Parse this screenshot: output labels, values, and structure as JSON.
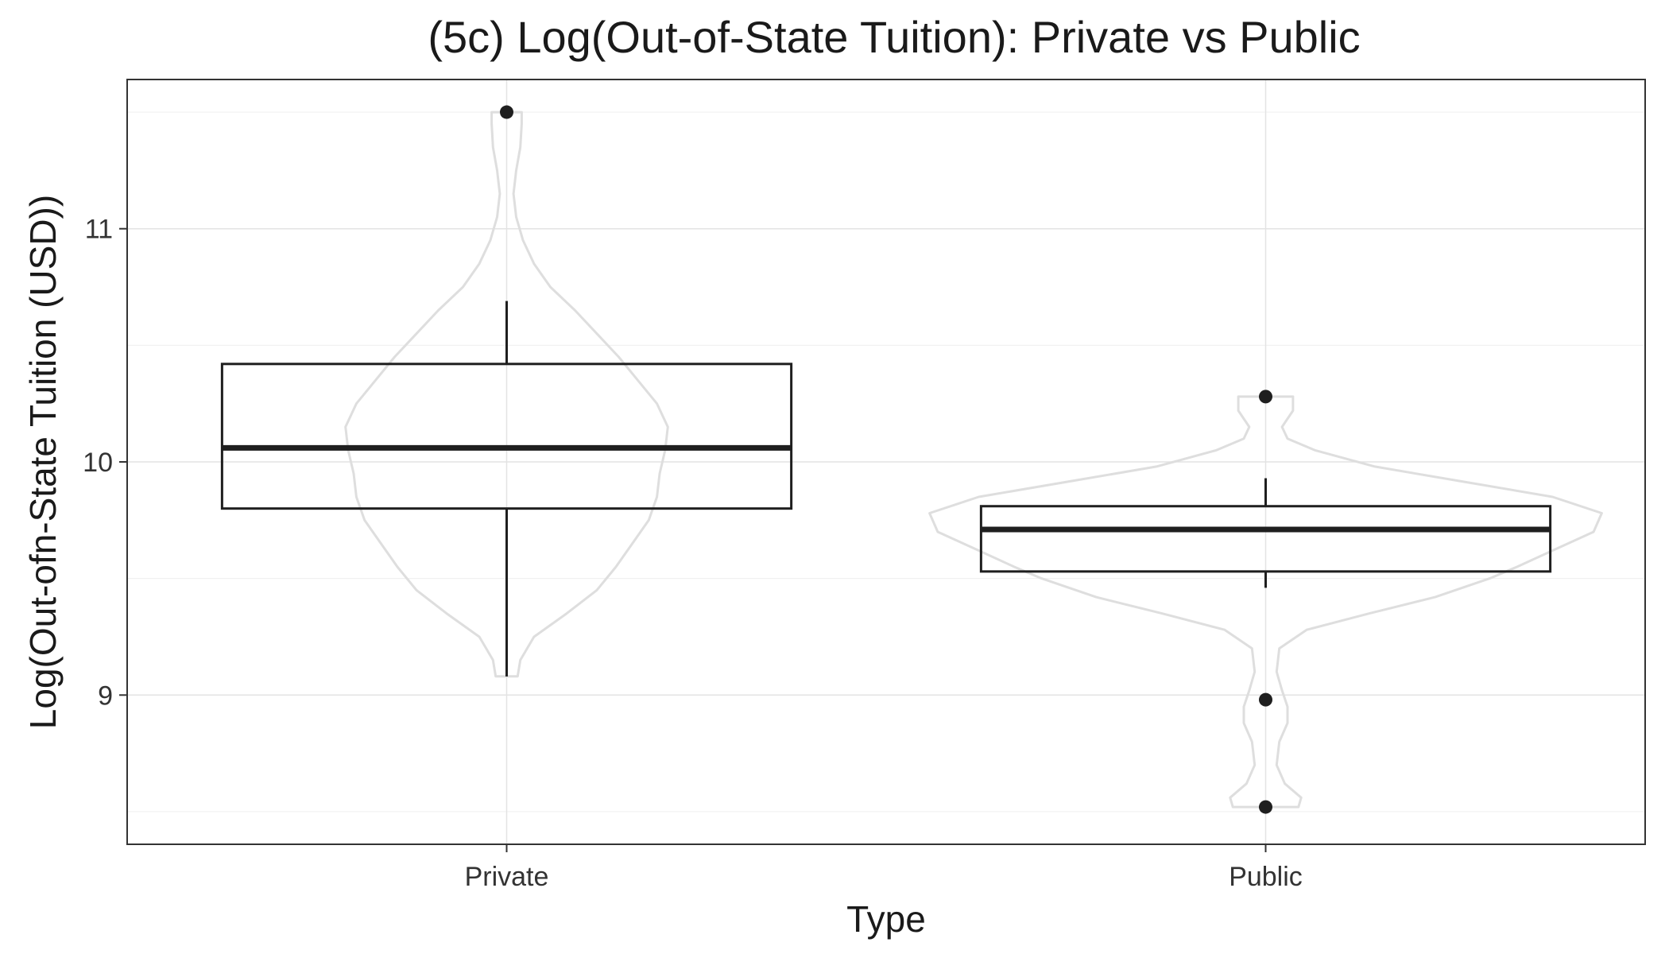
{
  "chart_data": {
    "type": "boxplot",
    "title": "(5c) Log(Out-of-State Tuition): Private vs Public",
    "xlabel": "Type",
    "ylabel": "Log(Out-ofn-State Tuition (USD))",
    "ylim": [
      8.36,
      11.64
    ],
    "yticks": [
      9,
      10,
      11
    ],
    "grid": true,
    "legend": "none",
    "categories": [
      "Private",
      "Public"
    ],
    "boxes": [
      {
        "category": "Private",
        "whisker_low": 9.08,
        "q1": 9.8,
        "median": 10.06,
        "q3": 10.42,
        "whisker_high": 10.69,
        "outliers": [
          11.5
        ],
        "violin": [
          [
            9.08,
            0.04
          ],
          [
            9.15,
            0.05
          ],
          [
            9.25,
            0.1
          ],
          [
            9.35,
            0.22
          ],
          [
            9.45,
            0.33
          ],
          [
            9.55,
            0.4
          ],
          [
            9.65,
            0.46
          ],
          [
            9.75,
            0.52
          ],
          [
            9.85,
            0.55
          ],
          [
            9.95,
            0.56
          ],
          [
            10.05,
            0.58
          ],
          [
            10.15,
            0.59
          ],
          [
            10.25,
            0.55
          ],
          [
            10.35,
            0.48
          ],
          [
            10.45,
            0.41
          ],
          [
            10.55,
            0.33
          ],
          [
            10.65,
            0.25
          ],
          [
            10.75,
            0.16
          ],
          [
            10.85,
            0.1
          ],
          [
            10.95,
            0.06
          ],
          [
            11.05,
            0.035
          ],
          [
            11.15,
            0.025
          ],
          [
            11.25,
            0.035
          ],
          [
            11.35,
            0.05
          ],
          [
            11.45,
            0.055
          ],
          [
            11.5,
            0.055
          ]
        ]
      },
      {
        "category": "Public",
        "whisker_low": 9.46,
        "q1": 9.53,
        "median": 9.71,
        "q3": 9.81,
        "whisker_high": 9.93,
        "outliers": [
          10.28,
          8.98,
          8.52
        ],
        "violin": [
          [
            8.52,
            0.12
          ],
          [
            8.56,
            0.13
          ],
          [
            8.62,
            0.07
          ],
          [
            8.7,
            0.04
          ],
          [
            8.8,
            0.05
          ],
          [
            8.88,
            0.08
          ],
          [
            8.95,
            0.08
          ],
          [
            9.02,
            0.06
          ],
          [
            9.1,
            0.04
          ],
          [
            9.2,
            0.05
          ],
          [
            9.28,
            0.15
          ],
          [
            9.35,
            0.38
          ],
          [
            9.42,
            0.62
          ],
          [
            9.5,
            0.82
          ],
          [
            9.55,
            0.92
          ],
          [
            9.62,
            1.05
          ],
          [
            9.7,
            1.2
          ],
          [
            9.78,
            1.23
          ],
          [
            9.85,
            1.05
          ],
          [
            9.92,
            0.7
          ],
          [
            9.98,
            0.4
          ],
          [
            10.05,
            0.18
          ],
          [
            10.1,
            0.08
          ],
          [
            10.15,
            0.06
          ],
          [
            10.22,
            0.1
          ],
          [
            10.28,
            0.1
          ]
        ]
      }
    ]
  }
}
